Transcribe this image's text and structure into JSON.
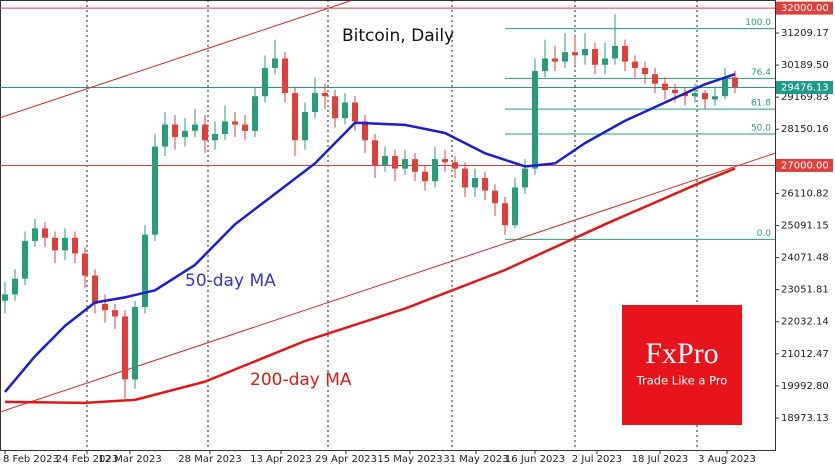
{
  "chart_data": {
    "type": "candlestick",
    "title": "Bitcoin, Daily",
    "xlim": [
      -0.5,
      77
    ],
    "ylim": [
      17956,
      32258
    ],
    "xticks": [
      {
        "value": 0,
        "label": "8 Feb 2023"
      },
      {
        "value": 8.2,
        "label": "24 Feb 2023"
      },
      {
        "value": 12.5,
        "label": "12 Mar 2023"
      },
      {
        "value": 20.5,
        "label": "28 Mar 2023"
      },
      {
        "value": 27.6,
        "label": "13 Apr 2023"
      },
      {
        "value": 34.1,
        "label": "29 Apr 2023"
      },
      {
        "value": 40.5,
        "label": "15 May 2023"
      },
      {
        "value": 47.1,
        "label": "31 May 2023"
      },
      {
        "value": 53,
        "label": "16 Jun 2023"
      },
      {
        "value": 59.2,
        "label": "2 Jul 2023"
      },
      {
        "value": 65.5,
        "label": "18 Jul 2023"
      },
      {
        "value": 72.2,
        "label": "3 Aug 2023"
      }
    ],
    "xgrid": [
      8.2,
      20.3,
      32.3,
      44.7,
      57,
      69.2
    ],
    "yticks": [
      31209.17,
      {
        "value": 30189.5,
        "label": "30189.50"
      },
      29169.83,
      28150.16,
      26110.82,
      25091.15,
      24071.48,
      23051.81,
      22032.14,
      21012.47,
      {
        "value": 19992.8,
        "label": "19992.80"
      },
      18973.13
    ],
    "candles": {
      "up_color": "#2a9d78",
      "down_color": "#e0403c",
      "open": [
        22700,
        22900,
        23400,
        24600,
        25000,
        24700,
        24300,
        24700,
        24200,
        23500,
        22600,
        22400,
        22200,
        20200,
        22500,
        24800,
        27600,
        28300,
        27900,
        28100,
        28300,
        27800,
        28000,
        28400,
        28300,
        28100,
        29200,
        30100,
        30400,
        29300,
        27800,
        28700,
        29300,
        29200,
        28500,
        29000,
        28400,
        27800,
        27000,
        27300,
        26900,
        27200,
        26800,
        26500,
        27200,
        27100,
        26900,
        26300,
        26600,
        26200,
        25800,
        25100,
        26300,
        26900,
        30000,
        30400,
        30300,
        30600,
        30500,
        30700,
        30200,
        30400,
        30800,
        30300,
        30100,
        29900,
        29600,
        29400,
        29300,
        29200,
        29300,
        29100,
        29200,
        29800
      ],
      "high": [
        23300,
        23700,
        24900,
        25300,
        25200,
        24900,
        25000,
        24900,
        24400,
        23700,
        22900,
        22600,
        22400,
        22700,
        25100,
        28000,
        28700,
        28600,
        28500,
        28800,
        28600,
        28400,
        28900,
        28700,
        28600,
        29500,
        30500,
        31000,
        30600,
        29500,
        29000,
        29800,
        29600,
        29400,
        29300,
        29200,
        28600,
        28000,
        27600,
        27500,
        27500,
        27400,
        27000,
        27600,
        27500,
        27300,
        27100,
        26900,
        26800,
        26400,
        26000,
        26600,
        27200,
        30400,
        31000,
        30800,
        31200,
        31100,
        31200,
        30900,
        30900,
        31800,
        31000,
        30500,
        30300,
        30100,
        29800,
        29600,
        29500,
        29600,
        29400,
        29500,
        30100,
        30000
      ],
      "low": [
        22300,
        22700,
        23200,
        24400,
        24400,
        23900,
        24000,
        23900,
        23100,
        22300,
        22000,
        21800,
        19600,
        19900,
        22300,
        24600,
        27300,
        27500,
        27600,
        27900,
        27400,
        27500,
        27800,
        27900,
        27800,
        27900,
        29000,
        29900,
        29000,
        27300,
        27500,
        28500,
        28800,
        28200,
        28300,
        28100,
        27400,
        26600,
        26800,
        26500,
        26700,
        26500,
        26200,
        26300,
        26800,
        26600,
        26000,
        26000,
        25900,
        25400,
        24800,
        25000,
        26100,
        26700,
        29800,
        30000,
        30100,
        30200,
        30200,
        29900,
        29900,
        30200,
        30000,
        29800,
        29600,
        29300,
        29100,
        29000,
        28900,
        29000,
        28800,
        28900,
        29100,
        29300
      ],
      "close": [
        22900,
        23400,
        24600,
        25000,
        24700,
        24300,
        24700,
        24200,
        23500,
        22600,
        22400,
        22200,
        20200,
        22500,
        24800,
        27600,
        28300,
        27900,
        28100,
        28300,
        27800,
        28000,
        28400,
        28300,
        28100,
        29200,
        30100,
        30400,
        29300,
        27800,
        28700,
        29300,
        29200,
        28500,
        29000,
        28400,
        27800,
        27000,
        27300,
        26900,
        27200,
        26800,
        26500,
        27200,
        27100,
        26900,
        26300,
        26600,
        26200,
        25800,
        25100,
        26300,
        26900,
        30000,
        30400,
        30300,
        30600,
        30500,
        30700,
        30200,
        30400,
        30800,
        30300,
        30100,
        29900,
        29600,
        29400,
        29300,
        29200,
        29300,
        29100,
        29200,
        29800,
        29476.13
      ]
    },
    "series": [
      {
        "name": "50-day MA",
        "color": "#1c1cd0",
        "x": [
          0,
          3,
          6,
          9,
          12,
          15,
          19,
          23,
          27,
          31,
          35,
          40,
          44,
          48,
          52,
          55,
          58,
          62,
          66,
          70,
          73
        ],
        "values": [
          19800,
          20936,
          21900,
          22645,
          22807,
          23032,
          23839,
          25129,
          26097,
          27065,
          28355,
          28290,
          28032,
          27387,
          26968,
          27065,
          27710,
          28420,
          29000,
          29580,
          29900
        ]
      },
      {
        "name": "200-day MA",
        "color": "#e01818",
        "x": [
          0,
          8,
          13,
          20,
          30,
          40,
          50,
          60,
          70,
          73
        ],
        "values": [
          19484,
          19452,
          19549,
          20129,
          21420,
          22452,
          23677,
          25129,
          26516,
          26903
        ]
      }
    ],
    "trendlines": [
      {
        "color": "#d42a2a",
        "x": [
          -0.5,
          34.5
        ],
        "values": [
          28516,
          32226
        ]
      },
      {
        "color": "#d42a2a",
        "x": [
          -0.5,
          77
        ],
        "values": [
          19161,
          27387
        ]
      }
    ],
    "fibonacci": {
      "x_start": 50,
      "high": 31350,
      "low": 24650,
      "color": "#2a9d78",
      "levels": [
        {
          "value": 100,
          "label": "100.0"
        },
        76.4,
        61.8,
        {
          "value": 50,
          "label": "50.0"
        },
        {
          "value": 0,
          "label": "0.0"
        }
      ]
    },
    "levels": [
      {
        "price": 32000,
        "label": "32000.00",
        "color": "#e0403c"
      },
      {
        "price": 29476.13,
        "color": "#1e9a8a"
      },
      {
        "price": 27000,
        "label": "27000.00",
        "color": "#e0403c"
      }
    ]
  },
  "logo": {
    "name": "FxPro",
    "tagline": "Trade Like a Pro"
  }
}
